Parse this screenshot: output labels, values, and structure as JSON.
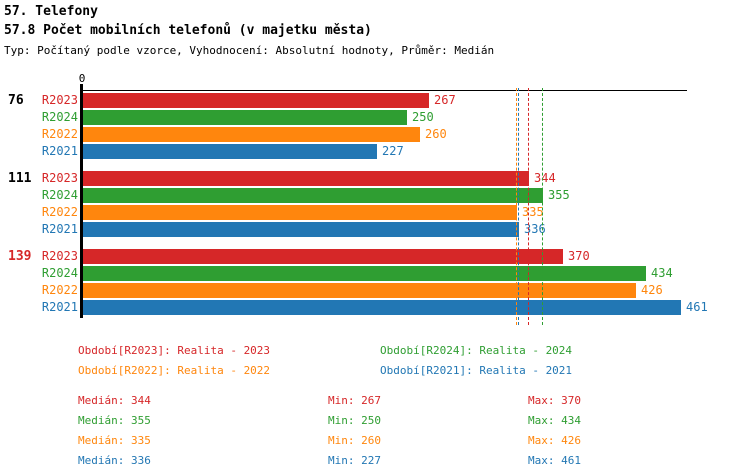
{
  "header": {
    "title": "57. Telefony",
    "subtitle": "57.8 Počet mobilních telefonů (v majetku města)",
    "meta": "Typ: Počítaný podle vzorce, Vyhodnocení: Absolutní hodnoty, Průměr: Medián"
  },
  "colors": {
    "R2023": "#d62728",
    "R2024": "#2f9e32",
    "R2022": "#ff860d",
    "R2021": "#2277b4",
    "axis": "#000000",
    "group_label_highlight": "#d62728"
  },
  "chart_data": {
    "type": "bar",
    "orientation": "horizontal",
    "x_axis": {
      "zero_label": "0",
      "min": 0,
      "approx_max": 466,
      "grid": false
    },
    "series_order": [
      "R2023",
      "R2024",
      "R2022",
      "R2021"
    ],
    "groups": [
      {
        "label": "76",
        "label_color": "#000000",
        "values": {
          "R2023": 267,
          "R2024": 250,
          "R2022": 260,
          "R2021": 227
        }
      },
      {
        "label": "111",
        "label_color": "#000000",
        "values": {
          "R2023": 344,
          "R2024": 355,
          "R2022": 335,
          "R2021": 336
        }
      },
      {
        "label": "139",
        "label_color": "#d62728",
        "values": {
          "R2023": 370,
          "R2024": 434,
          "R2022": 426,
          "R2021": 461
        }
      }
    ],
    "median_lines": [
      {
        "series": "R2022",
        "value": 335
      },
      {
        "series": "R2021",
        "value": 336
      },
      {
        "series": "R2023",
        "value": 344
      },
      {
        "series": "R2024",
        "value": 355
      }
    ]
  },
  "legend": {
    "items": [
      {
        "series": "R2023",
        "label": "Období[R2023]: Realita - 2023"
      },
      {
        "series": "R2024",
        "label": "Období[R2024]: Realita - 2024"
      },
      {
        "series": "R2022",
        "label": "Období[R2022]: Realita - 2022"
      },
      {
        "series": "R2021",
        "label": "Období[R2021]: Realita - 2021"
      }
    ]
  },
  "stats": {
    "labels": {
      "median": "Medián",
      "min": "Min",
      "max": "Max"
    },
    "rows": [
      {
        "series": "R2023",
        "median": 344,
        "min": 267,
        "max": 370
      },
      {
        "series": "R2024",
        "median": 355,
        "min": 250,
        "max": 434
      },
      {
        "series": "R2022",
        "median": 335,
        "min": 260,
        "max": 426
      },
      {
        "series": "R2021",
        "median": 336,
        "min": 227,
        "max": 461
      }
    ]
  }
}
